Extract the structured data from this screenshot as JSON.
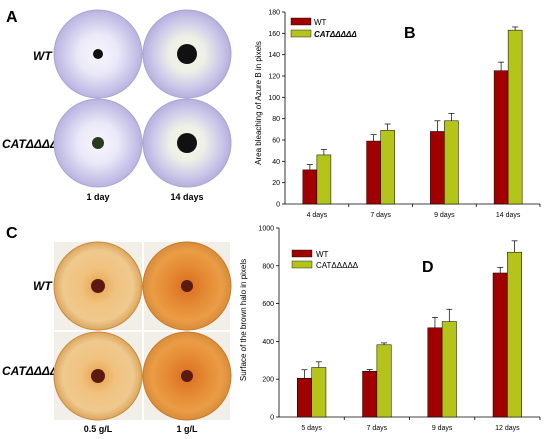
{
  "colors": {
    "wt": "#a00000",
    "cat": "#b4c41a",
    "azure_plate": "#c9c6ea",
    "azure_halo": "#f3f2fb",
    "brown_plate": "#e7a84e",
    "brown_halo": "#f2c98a"
  },
  "panels": {
    "A": {
      "label": "A",
      "rows": [
        "WT",
        "CATΔΔΔΔΔ"
      ],
      "columns": [
        "1 day",
        "14 days"
      ]
    },
    "C": {
      "label": "C",
      "rows": [
        "WT",
        "CATΔΔΔΔΔ"
      ],
      "columns": [
        "0.5 g/L",
        "1 g/L"
      ]
    }
  },
  "chart_data": [
    {
      "id": "B",
      "panel_label": "B",
      "type": "bar",
      "ylabel": "Area bleaching of Azure B in pixels",
      "ylim": [
        0,
        180
      ],
      "yticks": [
        0,
        20,
        40,
        60,
        80,
        100,
        120,
        140,
        160,
        180
      ],
      "categories": [
        "4 days",
        "7 days",
        "9 days",
        "14 days"
      ],
      "legend_position": "top-left",
      "series": [
        {
          "name": "WT",
          "color": "#a00000",
          "values": [
            32,
            59,
            68,
            125
          ],
          "errors": [
            5,
            6,
            10,
            8
          ]
        },
        {
          "name": "CATΔΔΔΔΔ",
          "color": "#b4c41a",
          "values": [
            46,
            69,
            78,
            163
          ],
          "errors": [
            5,
            6,
            7,
            3
          ]
        }
      ]
    },
    {
      "id": "D",
      "panel_label": "D",
      "type": "bar",
      "ylabel": "Surface of the brown halo in pixels",
      "ylim": [
        0,
        1000
      ],
      "yticks": [
        0,
        200,
        400,
        600,
        800,
        1000
      ],
      "categories": [
        "5 days",
        "7 days",
        "9 days",
        "12 days"
      ],
      "legend_position": "top-left",
      "series": [
        {
          "name": "WT",
          "color": "#a00000",
          "values": [
            205,
            242,
            472,
            762
          ],
          "errors": [
            45,
            10,
            55,
            30
          ]
        },
        {
          "name": "CATΔΔΔΔΔ",
          "color": "#b4c41a",
          "values": [
            262,
            382,
            505,
            872
          ],
          "errors": [
            30,
            10,
            65,
            60
          ]
        }
      ]
    }
  ]
}
